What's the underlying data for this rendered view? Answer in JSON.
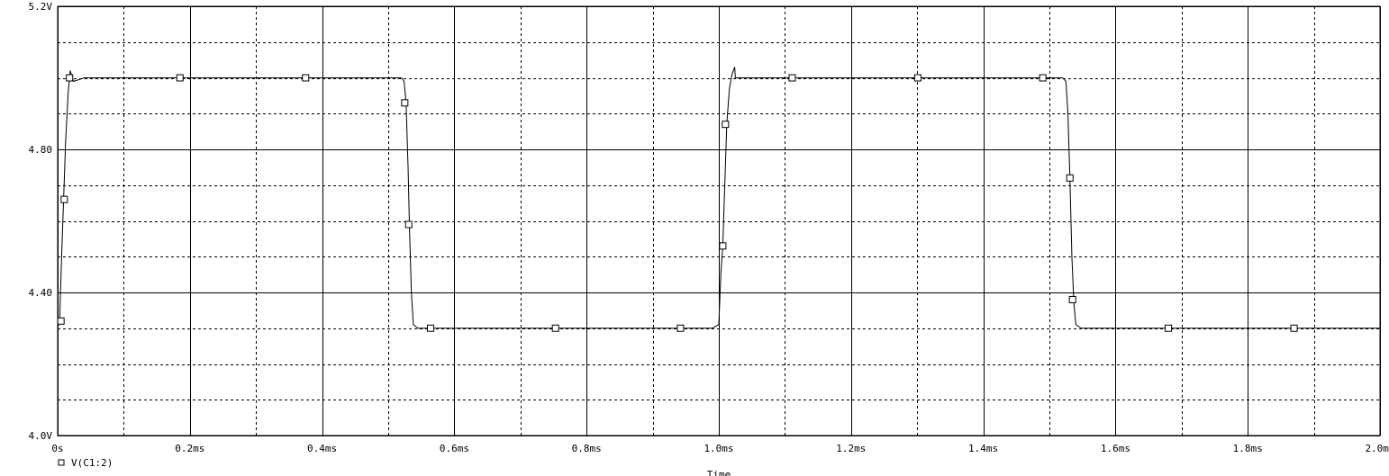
{
  "chart_data": {
    "type": "line",
    "title": "",
    "xlabel": "Time",
    "ylabel": "",
    "xlim": [
      0,
      2.0
    ],
    "ylim": [
      4.0,
      5.2
    ],
    "x_ticks": [
      {
        "value": 0.0,
        "label": "0s"
      },
      {
        "value": 0.2,
        "label": "0.2ms"
      },
      {
        "value": 0.4,
        "label": "0.4ms"
      },
      {
        "value": 0.6,
        "label": "0.6ms"
      },
      {
        "value": 0.8,
        "label": "0.8ms"
      },
      {
        "value": 1.0,
        "label": "1.0ms"
      },
      {
        "value": 1.2,
        "label": "1.2ms"
      },
      {
        "value": 1.4,
        "label": "1.4ms"
      },
      {
        "value": 1.6,
        "label": "1.6ms"
      },
      {
        "value": 1.8,
        "label": "1.8ms"
      },
      {
        "value": 2.0,
        "label": "2.0ms"
      }
    ],
    "y_ticks": [
      {
        "value": 4.0,
        "label": "4.0V"
      },
      {
        "value": 4.4,
        "label": "4.40"
      },
      {
        "value": 4.8,
        "label": "4.80"
      },
      {
        "value": 5.2,
        "label": "5.2V"
      }
    ],
    "grid": true,
    "legend_position": "bottom-left",
    "series": [
      {
        "name": "V(C1:2)",
        "color": "#000000",
        "points": [
          [
            0.0,
            4.3
          ],
          [
            0.003,
            4.32
          ],
          [
            0.006,
            4.5
          ],
          [
            0.009,
            4.66
          ],
          [
            0.012,
            4.82
          ],
          [
            0.016,
            4.96
          ],
          [
            0.019,
            5.02
          ],
          [
            0.024,
            4.99
          ],
          [
            0.04,
            5.0
          ],
          [
            0.2,
            5.0
          ],
          [
            0.4,
            5.0
          ],
          [
            0.52,
            5.0
          ],
          [
            0.524,
            4.99
          ],
          [
            0.527,
            4.93
          ],
          [
            0.53,
            4.75
          ],
          [
            0.532,
            4.59
          ],
          [
            0.535,
            4.4
          ],
          [
            0.538,
            4.31
          ],
          [
            0.545,
            4.3
          ],
          [
            0.56,
            4.3
          ],
          [
            0.8,
            4.3
          ],
          [
            0.99,
            4.3
          ],
          [
            1.0,
            4.31
          ],
          [
            1.003,
            4.45
          ],
          [
            1.006,
            4.53
          ],
          [
            1.009,
            4.7
          ],
          [
            1.012,
            4.87
          ],
          [
            1.016,
            4.97
          ],
          [
            1.02,
            5.01
          ],
          [
            1.024,
            5.03
          ],
          [
            1.025,
            5.0
          ],
          [
            1.035,
            5.0
          ],
          [
            1.2,
            5.0
          ],
          [
            1.4,
            5.0
          ],
          [
            1.52,
            5.0
          ],
          [
            1.525,
            4.99
          ],
          [
            1.528,
            4.9
          ],
          [
            1.531,
            4.72
          ],
          [
            1.534,
            4.5
          ],
          [
            1.537,
            4.37
          ],
          [
            1.54,
            4.31
          ],
          [
            1.548,
            4.3
          ],
          [
            1.56,
            4.3
          ],
          [
            1.8,
            4.3
          ],
          [
            2.0,
            4.3
          ]
        ],
        "markers": [
          [
            0.005,
            4.32
          ],
          [
            0.01,
            4.66
          ],
          [
            0.018,
            5.0
          ],
          [
            0.185,
            5.0
          ],
          [
            0.375,
            5.0
          ],
          [
            0.525,
            4.93
          ],
          [
            0.531,
            4.59
          ],
          [
            0.564,
            4.3
          ],
          [
            0.753,
            4.3
          ],
          [
            0.942,
            4.3
          ],
          [
            1.006,
            4.53
          ],
          [
            1.01,
            4.87
          ],
          [
            1.111,
            5.0
          ],
          [
            1.301,
            5.0
          ],
          [
            1.49,
            5.0
          ],
          [
            1.531,
            4.72
          ],
          [
            1.535,
            4.38
          ],
          [
            1.68,
            4.3
          ],
          [
            1.87,
            4.3
          ]
        ]
      }
    ]
  }
}
